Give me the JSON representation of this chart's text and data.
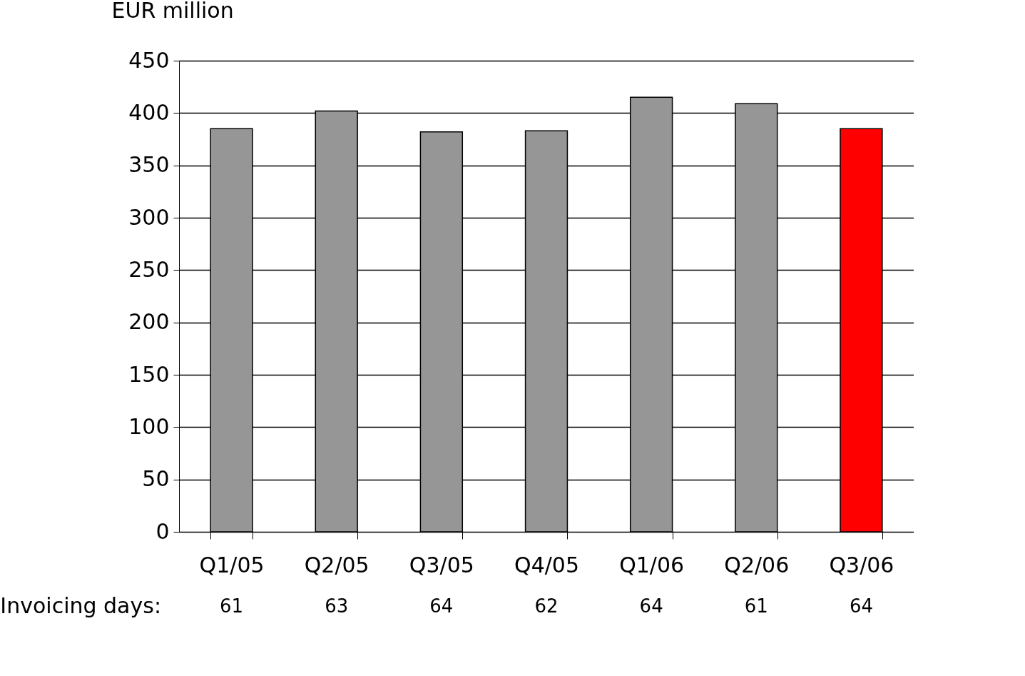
{
  "chart_data": {
    "type": "bar",
    "ylabel": "EUR million",
    "categories": [
      "Q1/05",
      "Q2/05",
      "Q3/05",
      "Q4/05",
      "Q1/06",
      "Q2/06",
      "Q3/06"
    ],
    "values": [
      385,
      402,
      382,
      383,
      415,
      409,
      385
    ],
    "colors": [
      "#969696",
      "#969696",
      "#969696",
      "#969696",
      "#969696",
      "#969696",
      "#ff0000"
    ],
    "ylim": [
      0,
      450
    ],
    "yticks": [
      0,
      50,
      100,
      150,
      200,
      250,
      300,
      350,
      400,
      450
    ],
    "grid": "y",
    "legend": false,
    "annotations": [
      "Invoicing days:",
      "61",
      "63",
      "64",
      "62",
      "64",
      "61",
      "64"
    ]
  }
}
